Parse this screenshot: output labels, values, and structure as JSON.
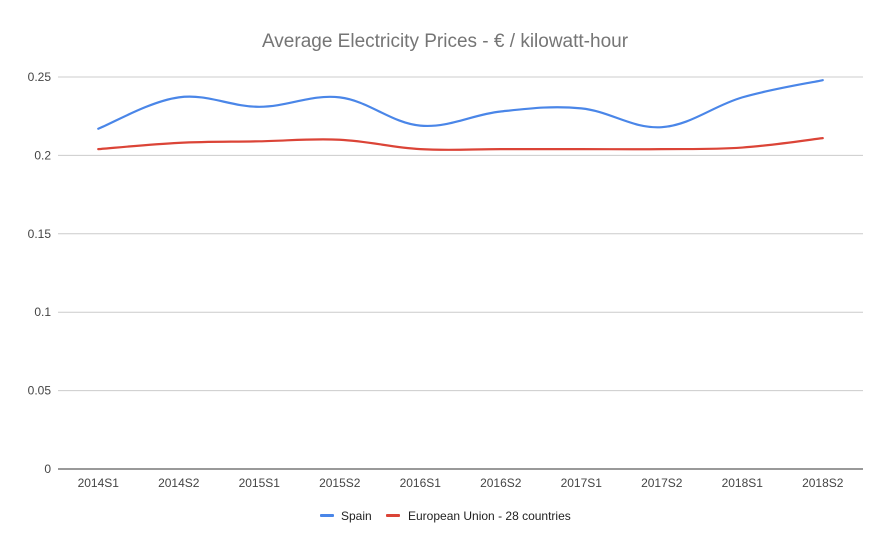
{
  "chart_data": {
    "type": "line",
    "title": "Average Electricity Prices - € / kilowatt-hour",
    "xlabel": "",
    "ylabel": "",
    "categories": [
      "2014S1",
      "2014S2",
      "2015S1",
      "2015S2",
      "2016S1",
      "2016S2",
      "2017S1",
      "2017S2",
      "2018S1",
      "2018S2"
    ],
    "yticks": [
      "0",
      "0.05",
      "0.1",
      "0.15",
      "0.2",
      "0.25"
    ],
    "ylim": [
      0,
      0.25
    ],
    "grid": true,
    "legend": "bottom",
    "series": [
      {
        "name": "Spain",
        "color": "#4a86e8",
        "values": [
          0.217,
          0.237,
          0.231,
          0.237,
          0.219,
          0.228,
          0.23,
          0.218,
          0.237,
          0.248
        ]
      },
      {
        "name": "European Union - 28 countries",
        "color": "#db4437",
        "values": [
          0.204,
          0.208,
          0.209,
          0.21,
          0.204,
          0.204,
          0.204,
          0.204,
          0.205,
          0.211
        ]
      }
    ]
  }
}
